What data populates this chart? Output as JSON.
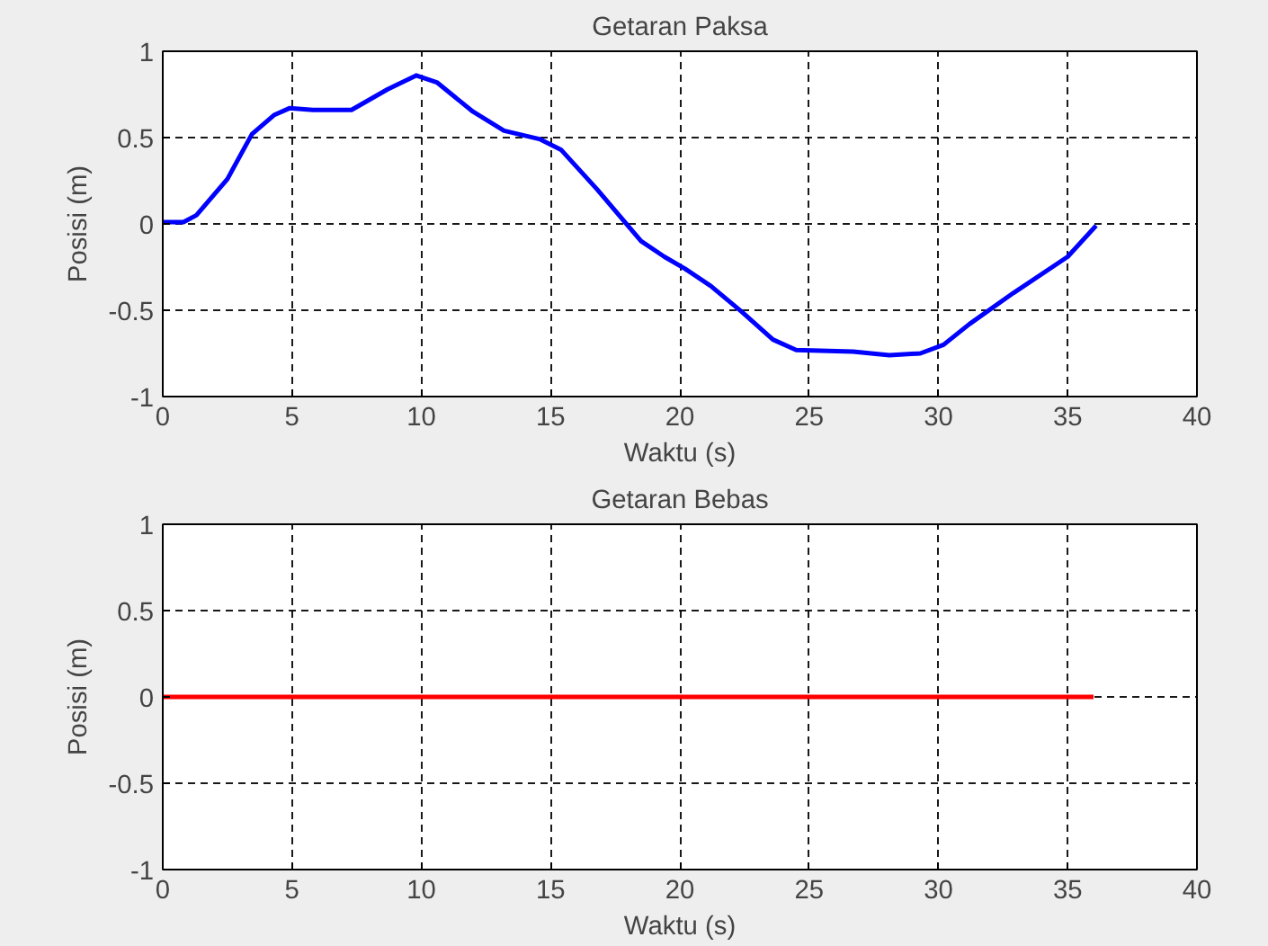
{
  "chart_data": [
    {
      "type": "line",
      "title": "Getaran Paksa",
      "xlabel": "Waktu (s)",
      "ylabel": "Posisi (m)",
      "xlim": [
        0,
        40
      ],
      "ylim": [
        -1,
        1
      ],
      "xticks": [
        0,
        5,
        10,
        15,
        20,
        25,
        30,
        35,
        40
      ],
      "yticks": [
        -1,
        -0.5,
        0,
        0.5,
        1
      ],
      "grid": true,
      "series": [
        {
          "color": "#0000ff",
          "x": [
            0,
            0.8,
            1.3,
            2.5,
            3.45,
            4.3,
            4.9,
            5.8,
            7.3,
            8.7,
            9.8,
            10.6,
            12,
            13.2,
            14.6,
            15.4,
            16.8,
            18.5,
            19.4,
            20.2,
            21.2,
            22.4,
            23.6,
            24.5,
            26.7,
            28.1,
            29.3,
            30.2,
            31.2,
            32.9,
            35,
            36.1
          ],
          "values": [
            0.01,
            0.01,
            0.05,
            0.26,
            0.52,
            0.63,
            0.67,
            0.66,
            0.66,
            0.78,
            0.86,
            0.82,
            0.65,
            0.54,
            0.49,
            0.43,
            0.2,
            -0.1,
            -0.19,
            -0.26,
            -0.36,
            -0.51,
            -0.67,
            -0.73,
            -0.74,
            -0.76,
            -0.75,
            -0.7,
            -0.58,
            -0.4,
            -0.19,
            -0.01
          ]
        }
      ]
    },
    {
      "type": "line",
      "title": "Getaran Bebas",
      "xlabel": "Waktu (s)",
      "ylabel": "Posisi (m)",
      "xlim": [
        0,
        40
      ],
      "ylim": [
        -1,
        1
      ],
      "xticks": [
        0,
        5,
        10,
        15,
        20,
        25,
        30,
        35,
        40
      ],
      "yticks": [
        -1,
        -0.5,
        0,
        0.5,
        1
      ],
      "grid": true,
      "series": [
        {
          "color": "#ff0000",
          "x": [
            0,
            36
          ],
          "values": [
            0,
            0
          ]
        }
      ]
    }
  ]
}
